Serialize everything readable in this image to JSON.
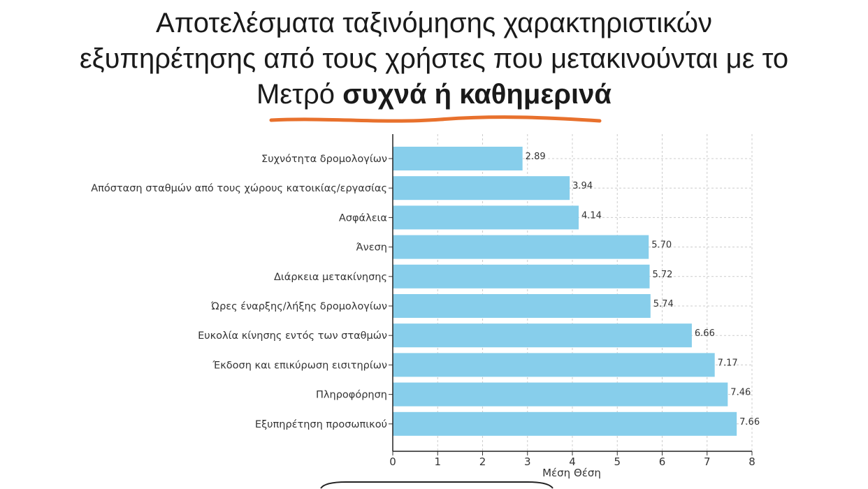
{
  "title": {
    "line1": "Αποτελέσματα ταξινόμησης χαρακτηριστικών",
    "line2": "εξυπηρέτησης από τους χρήστες που μετακινούνται με το",
    "line3_plain": "Μετρό",
    "line3_bold": "συχνά ή καθημερινά"
  },
  "colors": {
    "bar": "#87ceeb",
    "underline": "#e8712d",
    "grid": "#cccccc"
  },
  "chart_data": {
    "type": "bar",
    "orientation": "horizontal",
    "categories": [
      "Συχνότητα δρομολογίων",
      "Απόσταση σταθμών από τους χώρους κατοικίας/εργασίας",
      "Ασφάλεια",
      "Άνεση",
      "Διάρκεια μετακίνησης",
      "Ώρες έναρξης/λήξης δρομολογίων",
      "Ευκολία κίνησης εντός των σταθμών",
      "Έκδοση και επικύρωση εισιτηρίων",
      "Πληροφόρηση",
      "Εξυπηρέτηση προσωπικού"
    ],
    "values": [
      2.89,
      3.94,
      4.14,
      5.7,
      5.72,
      5.74,
      6.66,
      7.17,
      7.46,
      7.66
    ],
    "value_labels": [
      "2.89",
      "3.94",
      "4.14",
      "5.70",
      "5.72",
      "5.74",
      "6.66",
      "7.17",
      "7.46",
      "7.66"
    ],
    "xlabel": "Μέση Θέση",
    "ylabel": "",
    "xlim": [
      0,
      8
    ],
    "xticks": [
      "0",
      "1",
      "2",
      "3",
      "4",
      "5",
      "6",
      "7",
      "8"
    ],
    "grid": true
  }
}
